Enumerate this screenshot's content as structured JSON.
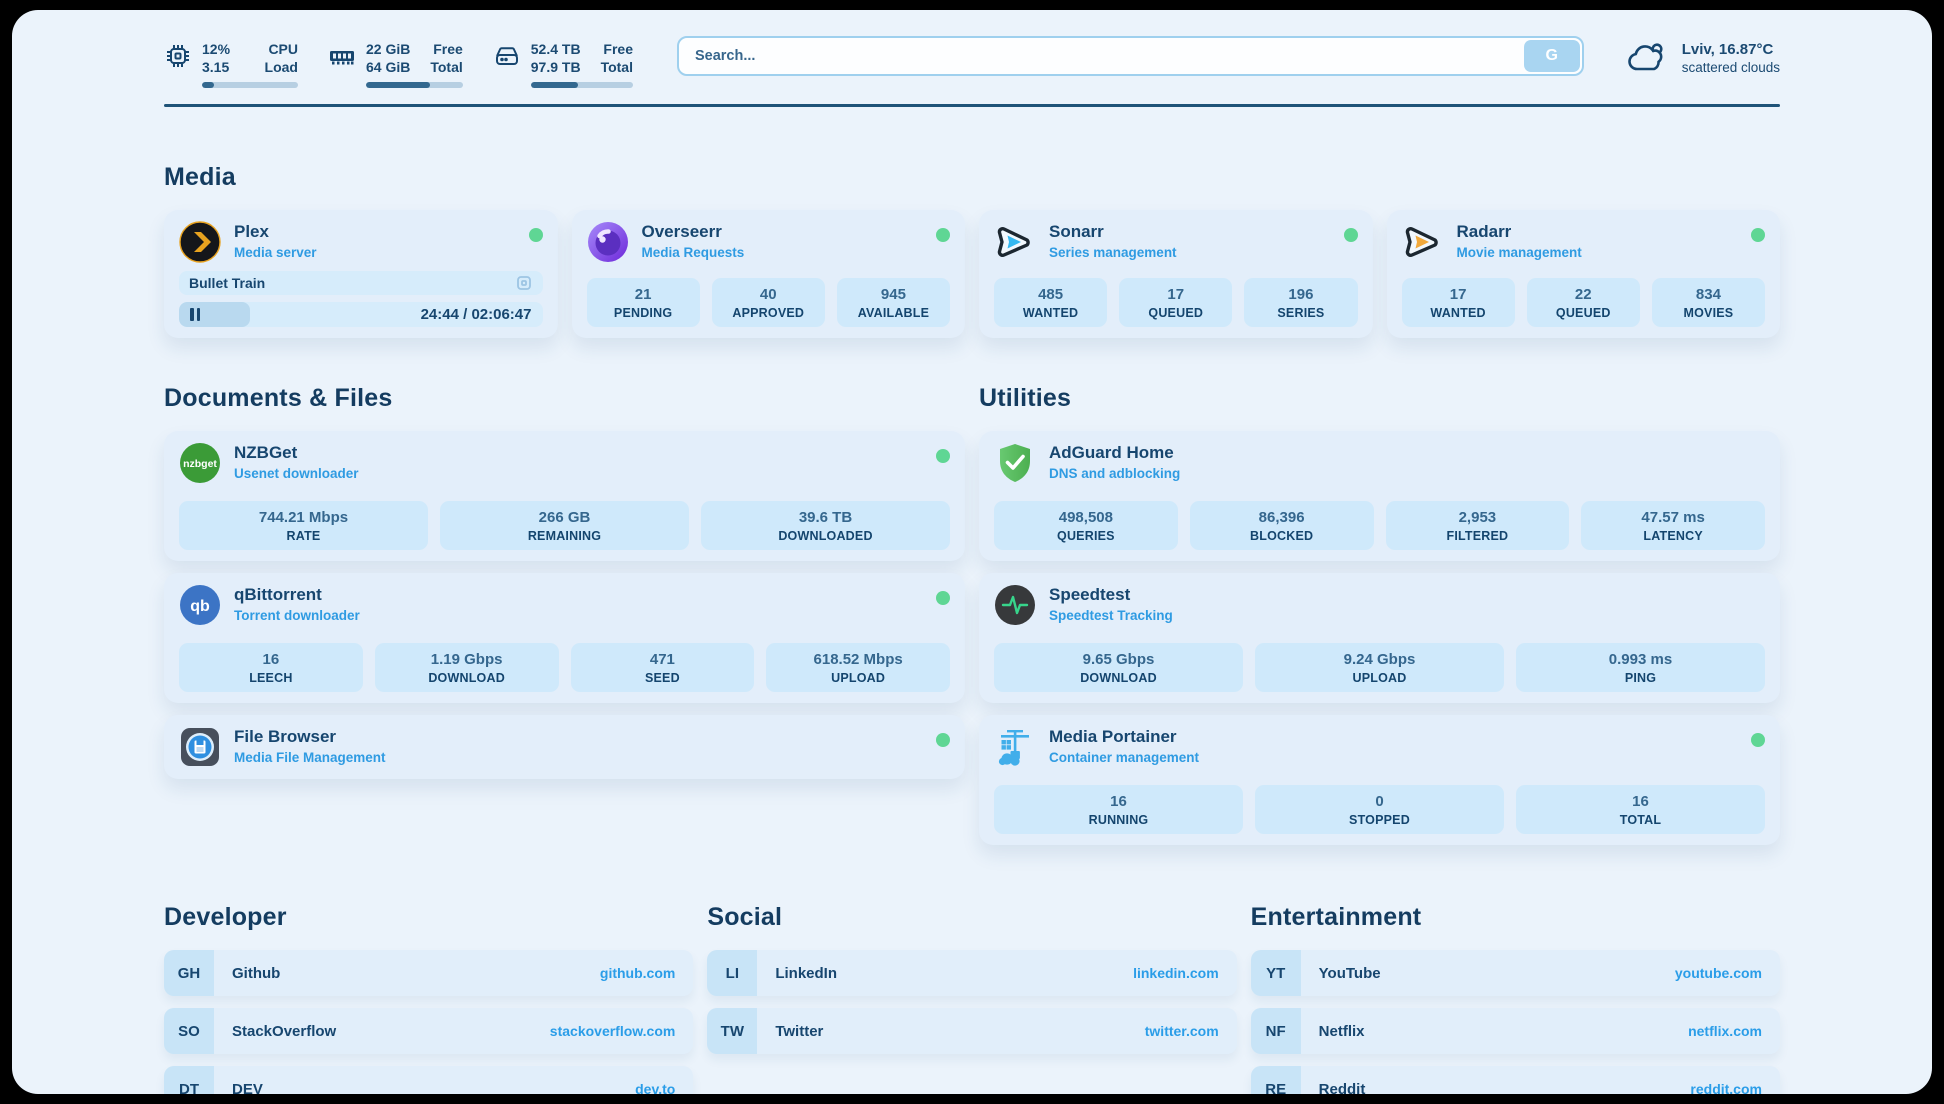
{
  "colors": {
    "accent_blue": "#2f9be2",
    "link_blue": "#2a9de8",
    "status_green": "#5fd694",
    "navy": "#17466f"
  },
  "header": {
    "cpu": {
      "value_top": "12%",
      "value_bottom": "3.15",
      "label_top": "CPU",
      "label_bottom": "Load",
      "bar_pct": 12
    },
    "ram": {
      "value_top": "22 GiB",
      "value_bottom": "64 GiB",
      "label_top": "Free",
      "label_bottom": "Total",
      "bar_pct": 66
    },
    "disk": {
      "value_top": "52.4 TB",
      "value_bottom": "97.9 TB",
      "label_top": "Free",
      "label_bottom": "Total",
      "bar_pct": 46
    },
    "search": {
      "placeholder": "Search...",
      "button_label": "G"
    },
    "weather": {
      "location": "Lviv, 16.87°C",
      "condition": "scattered clouds"
    }
  },
  "sections": {
    "media": "Media",
    "documents": "Documents & Files",
    "utilities": "Utilities"
  },
  "apps": {
    "plex": {
      "title": "Plex",
      "subtitle": "Media server",
      "now_playing": "Bullet Train",
      "time": "24:44 / 02:06:47",
      "progress_pct": 19.5
    },
    "overseerr": {
      "title": "Overseerr",
      "subtitle": "Media Requests",
      "stats": [
        {
          "value": "21",
          "label": "PENDING"
        },
        {
          "value": "40",
          "label": "APPROVED"
        },
        {
          "value": "945",
          "label": "AVAILABLE"
        }
      ]
    },
    "sonarr": {
      "title": "Sonarr",
      "subtitle": "Series management",
      "stats": [
        {
          "value": "485",
          "label": "WANTED"
        },
        {
          "value": "17",
          "label": "QUEUED"
        },
        {
          "value": "196",
          "label": "SERIES"
        }
      ]
    },
    "radarr": {
      "title": "Radarr",
      "subtitle": "Movie management",
      "stats": [
        {
          "value": "17",
          "label": "WANTED"
        },
        {
          "value": "22",
          "label": "QUEUED"
        },
        {
          "value": "834",
          "label": "MOVIES"
        }
      ]
    },
    "nzbget": {
      "title": "NZBGet",
      "subtitle": "Usenet downloader",
      "stats": [
        {
          "value": "744.21 Mbps",
          "label": "RATE"
        },
        {
          "value": "266 GB",
          "label": "REMAINING"
        },
        {
          "value": "39.6 TB",
          "label": "DOWNLOADED"
        }
      ]
    },
    "adguard": {
      "title": "AdGuard Home",
      "subtitle": "DNS and adblocking",
      "stats": [
        {
          "value": "498,508",
          "label": "QUERIES"
        },
        {
          "value": "86,396",
          "label": "BLOCKED"
        },
        {
          "value": "2,953",
          "label": "FILTERED"
        },
        {
          "value": "47.57 ms",
          "label": "LATENCY"
        }
      ]
    },
    "qbittorrent": {
      "title": "qBittorrent",
      "subtitle": "Torrent downloader",
      "stats": [
        {
          "value": "16",
          "label": "LEECH"
        },
        {
          "value": "1.19 Gbps",
          "label": "DOWNLOAD"
        },
        {
          "value": "471",
          "label": "SEED"
        },
        {
          "value": "618.52 Mbps",
          "label": "UPLOAD"
        }
      ]
    },
    "speedtest": {
      "title": "Speedtest",
      "subtitle": "Speedtest Tracking",
      "stats": [
        {
          "value": "9.65 Gbps",
          "label": "DOWNLOAD"
        },
        {
          "value": "9.24 Gbps",
          "label": "UPLOAD"
        },
        {
          "value": "0.993 ms",
          "label": "PING"
        }
      ]
    },
    "filebrowser": {
      "title": "File Browser",
      "subtitle": "Media File Management"
    },
    "portainer": {
      "title": "Media Portainer",
      "subtitle": "Container management",
      "stats": [
        {
          "value": "16",
          "label": "RUNNING"
        },
        {
          "value": "0",
          "label": "STOPPED"
        },
        {
          "value": "16",
          "label": "TOTAL"
        }
      ]
    }
  },
  "links": {
    "developer": {
      "title": "Developer",
      "items": [
        {
          "abbr": "GH",
          "name": "Github",
          "url": "github.com"
        },
        {
          "abbr": "SO",
          "name": "StackOverflow",
          "url": "stackoverflow.com"
        },
        {
          "abbr": "DT",
          "name": "DEV",
          "url": "dev.to"
        }
      ]
    },
    "social": {
      "title": "Social",
      "items": [
        {
          "abbr": "LI",
          "name": "LinkedIn",
          "url": "linkedin.com"
        },
        {
          "abbr": "TW",
          "name": "Twitter",
          "url": "twitter.com"
        }
      ]
    },
    "entertainment": {
      "title": "Entertainment",
      "items": [
        {
          "abbr": "YT",
          "name": "YouTube",
          "url": "youtube.com"
        },
        {
          "abbr": "NF",
          "name": "Netflix",
          "url": "netflix.com"
        },
        {
          "abbr": "RE",
          "name": "Reddit",
          "url": "reddit.com"
        }
      ]
    }
  }
}
